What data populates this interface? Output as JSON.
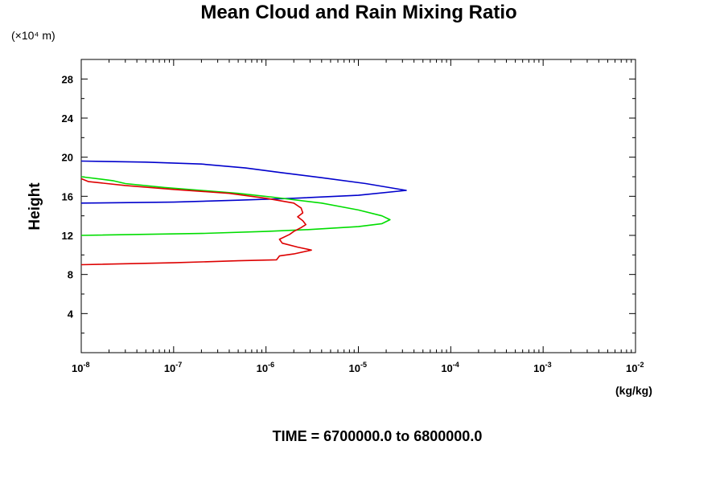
{
  "chart_data": {
    "type": "line",
    "title": "Mean Cloud and Rain Mixing Ratio",
    "y_multiplier_label": "(×10⁴ m)",
    "ylabel": "Height",
    "xlabel_units": "(kg/kg)",
    "footer": "TIME = 6700000.0 to 6800000.0",
    "x_scale": "log",
    "xlim": [
      1e-08,
      0.01
    ],
    "ylim": [
      0,
      30
    ],
    "grid": false,
    "x_ticks": [
      {
        "base": "10",
        "exp": "-8",
        "value": 1e-08
      },
      {
        "base": "10",
        "exp": "-7",
        "value": 1e-07
      },
      {
        "base": "10",
        "exp": "-6",
        "value": 1e-06
      },
      {
        "base": "10",
        "exp": "-5",
        "value": 1e-05
      },
      {
        "base": "10",
        "exp": "-4",
        "value": 0.0001
      },
      {
        "base": "10",
        "exp": "-3",
        "value": 0.001
      },
      {
        "base": "10",
        "exp": "-2",
        "value": 0.01
      }
    ],
    "y_ticks": [
      {
        "label": "4",
        "value": 4
      },
      {
        "label": "8",
        "value": 8
      },
      {
        "label": "12",
        "value": 12
      },
      {
        "label": "16",
        "value": 16
      },
      {
        "label": "20",
        "value": 20
      },
      {
        "label": "24",
        "value": 24
      },
      {
        "label": "28",
        "value": 28
      }
    ],
    "series": [
      {
        "color": "#0000cc",
        "points": [
          [
            1e-08,
            19.6
          ],
          [
            5e-08,
            19.5
          ],
          [
            2e-07,
            19.3
          ],
          [
            6e-07,
            18.9
          ],
          [
            1.5e-06,
            18.4
          ],
          [
            4e-06,
            17.9
          ],
          [
            1.2e-05,
            17.3
          ],
          [
            3.3e-05,
            16.6
          ],
          [
            1e-05,
            16.1
          ],
          [
            2e-06,
            15.8
          ],
          [
            5e-07,
            15.6
          ],
          [
            1e-07,
            15.4
          ],
          [
            1e-08,
            15.3
          ]
        ]
      },
      {
        "color": "#00dd00",
        "points": [
          [
            1e-08,
            18.0
          ],
          [
            2.2e-08,
            17.6
          ],
          [
            3e-08,
            17.3
          ],
          [
            8e-08,
            16.9
          ],
          [
            2e-07,
            16.6
          ],
          [
            5e-07,
            16.3
          ],
          [
            1.2e-06,
            15.9
          ],
          [
            4e-06,
            15.3
          ],
          [
            1e-05,
            14.6
          ],
          [
            1.8e-05,
            14.0
          ],
          [
            2.2e-05,
            13.6
          ],
          [
            1.8e-05,
            13.2
          ],
          [
            1e-05,
            12.9
          ],
          [
            3e-06,
            12.6
          ],
          [
            1e-06,
            12.4
          ],
          [
            2e-07,
            12.2
          ],
          [
            1e-08,
            12.0
          ]
        ]
      },
      {
        "color": "#dd0000",
        "points": [
          [
            1e-08,
            17.8
          ],
          [
            1.2e-08,
            17.5
          ],
          [
            3e-08,
            17.1
          ],
          [
            1e-07,
            16.7
          ],
          [
            4e-07,
            16.3
          ],
          [
            1e-06,
            15.8
          ],
          [
            2e-06,
            15.3
          ],
          [
            2.4e-06,
            14.8
          ],
          [
            2.5e-06,
            14.3
          ],
          [
            2.2e-06,
            13.9
          ],
          [
            2.5e-06,
            13.5
          ],
          [
            2.7e-06,
            13.1
          ],
          [
            2.4e-06,
            12.8
          ],
          [
            2e-06,
            12.4
          ],
          [
            1.8e-06,
            12.1
          ],
          [
            1.4e-06,
            11.6
          ],
          [
            1.5e-06,
            11.2
          ],
          [
            2.2e-06,
            10.8
          ],
          [
            3.1e-06,
            10.5
          ],
          [
            2e-06,
            10.1
          ],
          [
            1.4e-06,
            9.9
          ],
          [
            1.3e-06,
            9.5
          ],
          [
            5e-07,
            9.4
          ],
          [
            1e-07,
            9.2
          ],
          [
            1e-08,
            9.0
          ]
        ]
      }
    ]
  }
}
